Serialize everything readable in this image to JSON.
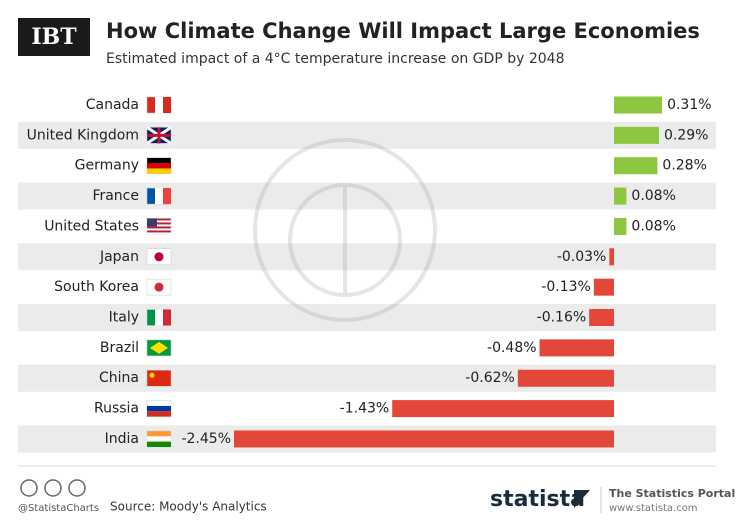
{
  "chart_data": {
    "type": "bar",
    "orientation": "horizontal",
    "title": "How Climate Change Will Impact Large Economies",
    "subtitle": "Estimated impact of a 4°C temperature increase on GDP by 2048",
    "categories": [
      "Canada",
      "United Kingdom",
      "Germany",
      "France",
      "United States",
      "Japan",
      "South Korea",
      "Italy",
      "Brazil",
      "China",
      "Russia",
      "India"
    ],
    "values": [
      0.31,
      0.29,
      0.28,
      0.08,
      0.08,
      -0.03,
      -0.13,
      -0.16,
      -0.48,
      -0.62,
      -1.43,
      -2.45
    ],
    "value_labels": [
      "0.31%",
      "0.29%",
      "0.28%",
      "0.08%",
      "0.08%",
      "-0.03%",
      "-0.13%",
      "-0.16%",
      "-0.48%",
      "-0.62%",
      "-1.43%",
      "-2.45%"
    ],
    "positive_color": "#8dc63f",
    "negative_color": "#e2473a",
    "source": "Source: Moody's Analytics"
  },
  "branding": {
    "logo": "IBT",
    "handle": "@StatistaCharts",
    "brand": "statista",
    "portal": "The Statistics Portal",
    "url": "www.statista.com"
  }
}
